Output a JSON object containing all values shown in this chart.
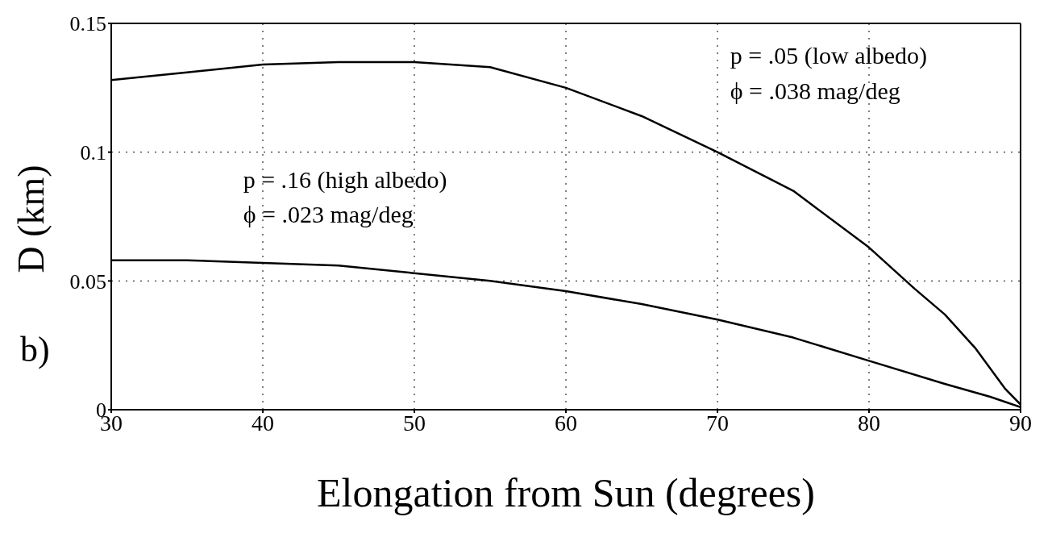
{
  "chart_data": {
    "type": "line",
    "xlabel": "Elongation from Sun (degrees)",
    "ylabel": "D (km)",
    "xlim": [
      30,
      90
    ],
    "xticks": [
      30,
      40,
      50,
      60,
      70,
      80,
      90
    ],
    "ylim": [
      0,
      0.15
    ],
    "yticks": [
      0,
      0.05,
      0.1,
      0.15
    ],
    "grid": true,
    "marker": "none",
    "line_style": "solid",
    "annotations": [
      "p = .05 (low albedo)\nϕ = .038 mag/deg",
      "p = .16 (high albedo)\nϕ = .023 mag/deg",
      "b)"
    ],
    "series": [
      {
        "color": "#000000",
        "x": [
          30,
          35,
          40,
          45,
          50,
          55,
          60,
          65,
          70,
          75,
          80,
          83,
          85,
          87,
          89,
          90
        ],
        "values": [
          0.128,
          0.131,
          0.134,
          0.135,
          0.135,
          0.133,
          0.125,
          0.114,
          0.1,
          0.085,
          0.063,
          0.047,
          0.037,
          0.024,
          0.008,
          0.002
        ]
      },
      {
        "color": "#000000",
        "x": [
          30,
          35,
          40,
          45,
          50,
          55,
          60,
          65,
          70,
          75,
          80,
          85,
          88,
          90
        ],
        "values": [
          0.058,
          0.058,
          0.057,
          0.056,
          0.053,
          0.05,
          0.046,
          0.041,
          0.035,
          0.028,
          0.019,
          0.01,
          0.005,
          0.001
        ]
      }
    ]
  }
}
